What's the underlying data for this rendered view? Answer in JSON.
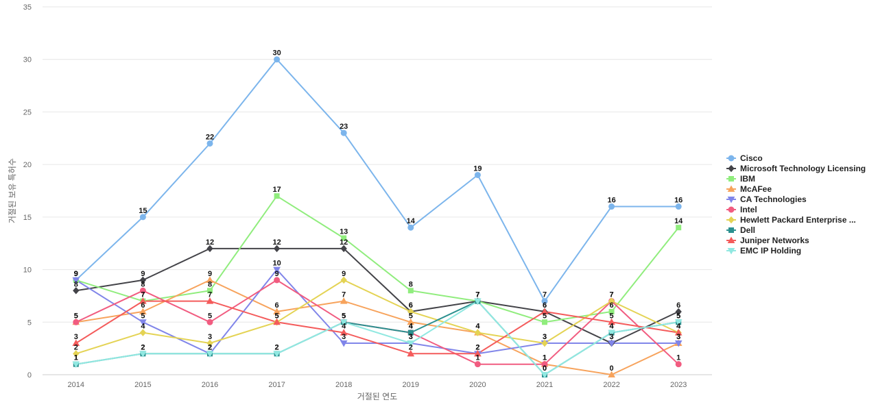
{
  "chart_data": {
    "type": "line",
    "xlabel": "거절된 연도",
    "ylabel": "거절된 보유 특허수",
    "ylim": [
      0,
      35
    ],
    "yticks": [
      0,
      5,
      10,
      15,
      20,
      25,
      30,
      35
    ],
    "categories": [
      "2014",
      "2015",
      "2016",
      "2017",
      "2018",
      "2019",
      "2020",
      "2021",
      "2022",
      "2023"
    ],
    "grid": true,
    "legend_position": "right",
    "series": [
      {
        "name": "Cisco",
        "color": "#7cb5ec",
        "marker": "circle",
        "values": [
          9,
          15,
          22,
          30,
          23,
          14,
          19,
          7,
          16,
          16
        ]
      },
      {
        "name": "Microsoft Technology Licensing",
        "color": "#434348",
        "marker": "diamond",
        "values": [
          8,
          9,
          12,
          12,
          12,
          6,
          7,
          6,
          3,
          6
        ]
      },
      {
        "name": "IBM",
        "color": "#90ed7d",
        "marker": "square",
        "values": [
          9,
          7,
          8,
          17,
          13,
          8,
          7,
          5,
          6,
          14
        ]
      },
      {
        "name": "McAFee",
        "color": "#f7a35c",
        "marker": "triangle",
        "values": [
          5,
          6,
          9,
          6,
          7,
          5,
          4,
          1,
          0,
          3
        ]
      },
      {
        "name": "CA Technologies",
        "color": "#8085e9",
        "marker": "triangle-down",
        "values": [
          9,
          5,
          2,
          10,
          3,
          3,
          2,
          3,
          3,
          3
        ]
      },
      {
        "name": "Intel",
        "color": "#f15c80",
        "marker": "circle",
        "values": [
          5,
          8,
          5,
          9,
          5,
          4,
          1,
          1,
          7,
          1
        ]
      },
      {
        "name": "Hewlett Packard Enterprise ...",
        "color": "#e4d354",
        "marker": "diamond",
        "values": [
          2,
          4,
          3,
          5,
          9,
          6,
          4,
          3,
          7,
          4
        ]
      },
      {
        "name": "Dell",
        "color": "#2b908f",
        "marker": "square",
        "values": [
          1,
          2,
          2,
          2,
          5,
          4,
          7,
          0,
          4,
          5
        ]
      },
      {
        "name": "Juniper Networks",
        "color": "#f45b5b",
        "marker": "triangle",
        "values": [
          3,
          7,
          7,
          5,
          4,
          2,
          2,
          6,
          5,
          4
        ]
      },
      {
        "name": "EMC IP Holding",
        "color": "#91e8e1",
        "marker": "triangle-down",
        "values": [
          1,
          2,
          2,
          2,
          5,
          3,
          7,
          0,
          4,
          5
        ]
      }
    ]
  }
}
